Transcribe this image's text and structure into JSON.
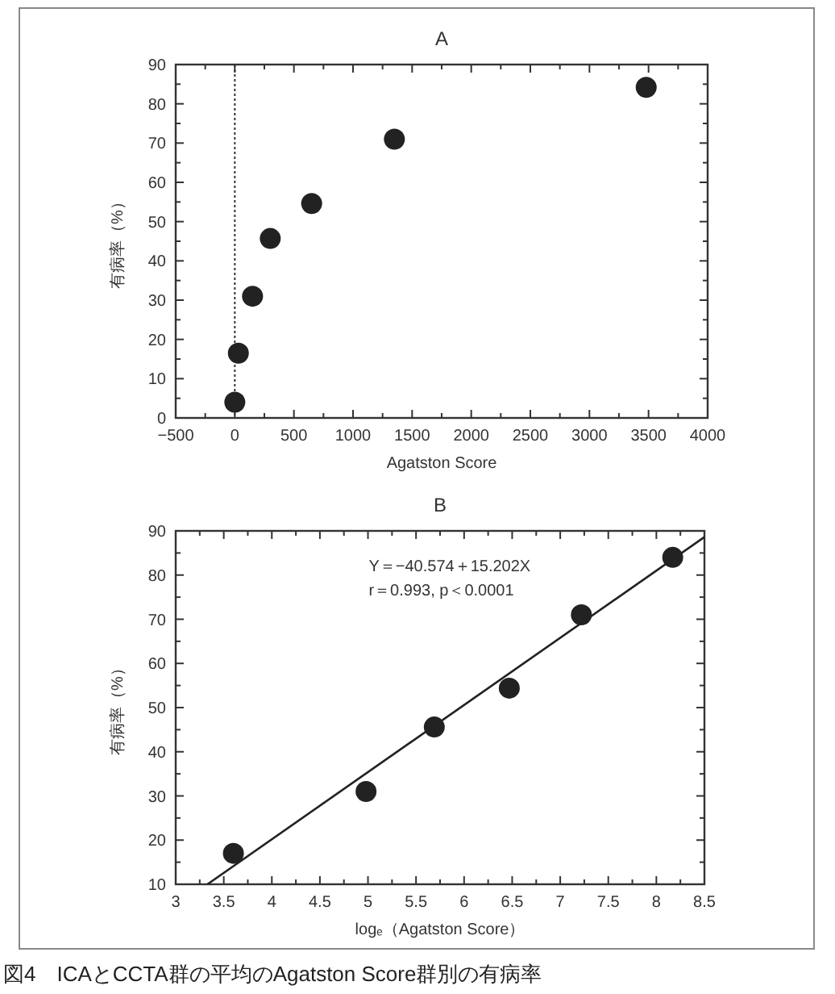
{
  "chart_data": [
    {
      "type": "scatter",
      "title": "A",
      "xlabel": "Agatston Score",
      "ylabel": "有病率（%）",
      "x": [
        0,
        30,
        150,
        300,
        650,
        1350,
        3480
      ],
      "series": [
        {
          "color": "#222222",
          "values": [
            4,
            16.5,
            31,
            45.7,
            54.6,
            71,
            84.2
          ]
        }
      ],
      "xlim": [
        -500,
        4000
      ],
      "xticks": [
        {
          "value": -500,
          "label": "−500"
        },
        0,
        500,
        1000,
        1500,
        2000,
        2500,
        3000,
        3500,
        4000
      ],
      "ylim": [
        0,
        90
      ],
      "yticks": [
        0,
        10,
        20,
        30,
        40,
        50,
        60,
        70,
        80,
        90
      ],
      "marker": "circle",
      "grid": false,
      "ref_lines": [
        {
          "axis": "x",
          "value": 0,
          "color": "#333333",
          "line_style": "dotted"
        }
      ]
    },
    {
      "type": "scatter",
      "title": "B",
      "xlabel": "logₑ（Agatston Score）",
      "ylabel": "有病率（%）",
      "x": [
        3.6,
        4.98,
        5.69,
        6.47,
        7.22,
        8.17
      ],
      "series": [
        {
          "color": "#222222",
          "values": [
            17,
            31,
            45.6,
            54.4,
            71,
            84
          ]
        },
        {
          "type": "line",
          "color": "#222222",
          "x": [
            3.33,
            8.5
          ],
          "values": [
            10,
            88.6
          ],
          "marker": "none"
        }
      ],
      "xlim": [
        3,
        8.5
      ],
      "xticks": [
        3,
        3.5,
        4,
        4.5,
        5,
        5.5,
        6,
        6.5,
        7,
        7.5,
        8,
        8.5
      ],
      "ylim": [
        10,
        90
      ],
      "yticks": [
        10,
        20,
        30,
        40,
        50,
        60,
        70,
        80,
        90
      ],
      "marker": "circle",
      "grid": false,
      "annotations": [
        "Y＝−40.574＋15.202X",
        "r＝0.993, p＜0.0001"
      ]
    },
    {
      "type": "other",
      "annotations": [
        "図4　ICAとCCTA群の平均のAgatston Score群別の有病率"
      ]
    }
  ]
}
